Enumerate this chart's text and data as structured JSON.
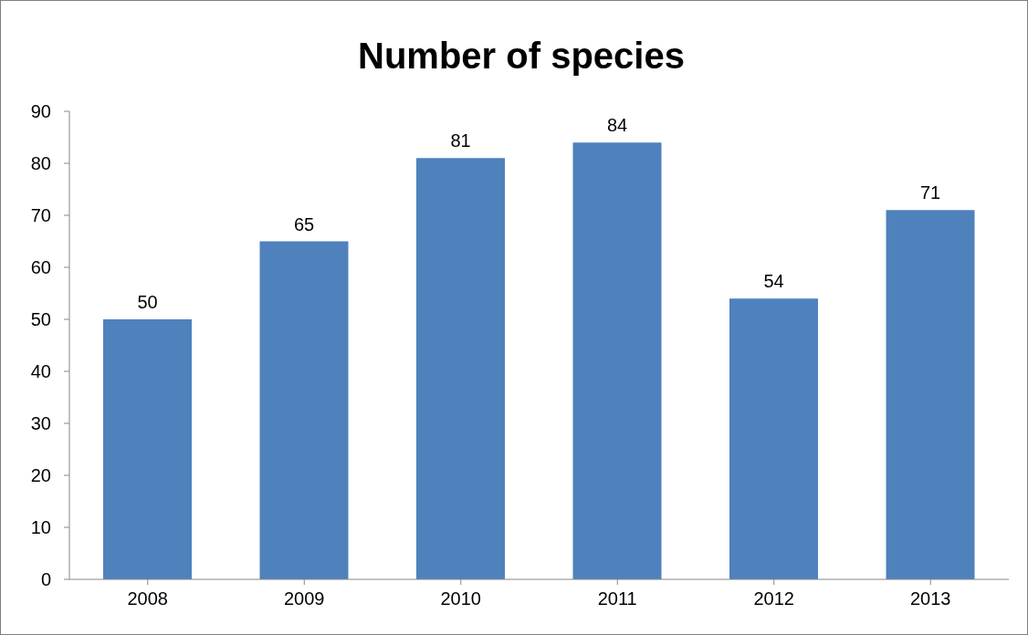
{
  "chart_data": {
    "type": "bar",
    "title": "Number of species",
    "categories": [
      "2008",
      "2009",
      "2010",
      "2011",
      "2012",
      "2013"
    ],
    "values": [
      50,
      65,
      81,
      84,
      54,
      71
    ],
    "color": "#4f81bd",
    "ylim": [
      0,
      90
    ],
    "yticks": [
      0,
      10,
      20,
      30,
      40,
      50,
      60,
      70,
      80,
      90
    ],
    "data_labels": true
  }
}
